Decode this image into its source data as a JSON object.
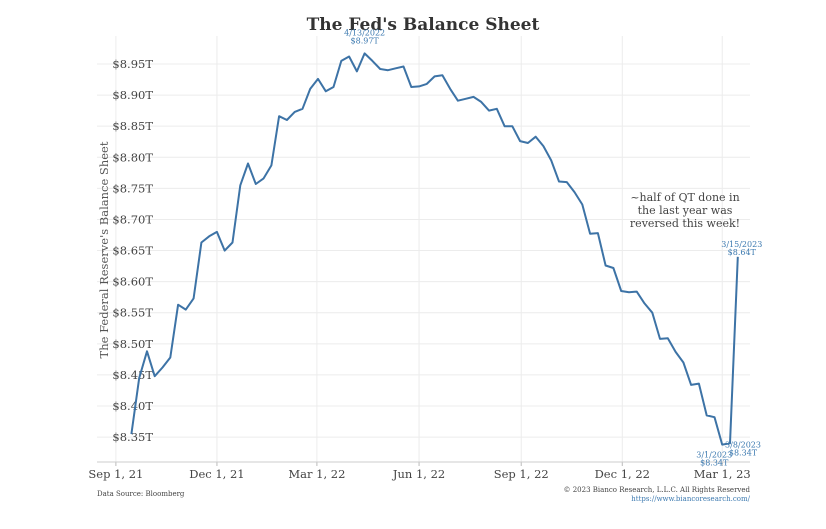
{
  "chart_data": {
    "type": "line",
    "title": "The Fed's Balance Sheet",
    "ylabel": "The Federal Reserve's Balance Sheet",
    "xlabel": "",
    "x_tick_labels": [
      "Sep 1, 21",
      "Dec 1, 21",
      "Mar 1, 22",
      "Jun 1, 22",
      "Sep 1, 22",
      "Dec 1, 22",
      "Mar 1, 23"
    ],
    "y_tick_labels": [
      "$8.35T",
      "$8.40T",
      "$8.45T",
      "$8.50T",
      "$8.55T",
      "$8.60T",
      "$8.65T",
      "$8.70T",
      "$8.75T",
      "$8.80T",
      "$8.85T",
      "$8.90T",
      "$8.95T"
    ],
    "ylim": [
      8.31,
      8.995
    ],
    "xlim": [
      "2021-08-15",
      "2023-03-26"
    ],
    "grid": true,
    "series": [
      {
        "color": "#3d73a6",
        "x": [
          "2021-09-15",
          "2021-09-22",
          "2021-09-29",
          "2021-10-06",
          "2021-10-13",
          "2021-10-20",
          "2021-10-27",
          "2021-11-03",
          "2021-11-10",
          "2021-11-17",
          "2021-11-24",
          "2021-12-01",
          "2021-12-08",
          "2021-12-15",
          "2021-12-22",
          "2021-12-29",
          "2022-01-05",
          "2022-01-12",
          "2022-01-19",
          "2022-01-26",
          "2022-02-02",
          "2022-02-09",
          "2022-02-16",
          "2022-02-23",
          "2022-03-02",
          "2022-03-09",
          "2022-03-16",
          "2022-03-23",
          "2022-03-30",
          "2022-04-06",
          "2022-04-13",
          "2022-04-20",
          "2022-04-27",
          "2022-05-04",
          "2022-05-11",
          "2022-05-18",
          "2022-05-25",
          "2022-06-01",
          "2022-06-08",
          "2022-06-15",
          "2022-06-22",
          "2022-06-29",
          "2022-07-06",
          "2022-07-13",
          "2022-07-20",
          "2022-07-27",
          "2022-08-03",
          "2022-08-10",
          "2022-08-17",
          "2022-08-24",
          "2022-08-31",
          "2022-09-07",
          "2022-09-14",
          "2022-09-21",
          "2022-09-28",
          "2022-10-05",
          "2022-10-12",
          "2022-10-19",
          "2022-10-26",
          "2022-11-02",
          "2022-11-09",
          "2022-11-16",
          "2022-11-23",
          "2022-11-30",
          "2022-12-07",
          "2022-12-14",
          "2022-12-21",
          "2022-12-28",
          "2023-01-04",
          "2023-01-11",
          "2023-01-18",
          "2023-01-25",
          "2023-02-01",
          "2023-02-08",
          "2023-02-15",
          "2023-02-22",
          "2023-03-01",
          "2023-03-08",
          "2023-03-15"
        ],
        "values": [
          8.355,
          8.445,
          8.488,
          8.448,
          8.462,
          8.478,
          8.563,
          8.555,
          8.573,
          8.663,
          8.673,
          8.68,
          8.65,
          8.663,
          8.755,
          8.79,
          8.757,
          8.766,
          8.787,
          8.866,
          8.86,
          8.873,
          8.878,
          8.91,
          8.926,
          8.906,
          8.913,
          8.955,
          8.962,
          8.938,
          8.967,
          8.955,
          8.942,
          8.94,
          8.943,
          8.946,
          8.913,
          8.914,
          8.918,
          8.93,
          8.932,
          8.91,
          8.891,
          8.894,
          8.897,
          8.889,
          8.875,
          8.878,
          8.85,
          8.85,
          8.826,
          8.823,
          8.833,
          8.818,
          8.795,
          8.761,
          8.76,
          8.744,
          8.724,
          8.677,
          8.678,
          8.626,
          8.622,
          8.585,
          8.583,
          8.584,
          8.565,
          8.55,
          8.508,
          8.509,
          8.487,
          8.47,
          8.434,
          8.436,
          8.385,
          8.382,
          8.338,
          8.34,
          8.64
        ]
      }
    ],
    "annotations": [
      {
        "date": "2022-04-13",
        "value": 8.967,
        "line1": "4/13/2022",
        "line2": "$8.97T"
      },
      {
        "date": "2023-03-01",
        "value": 8.338,
        "line1": "3/1/2023",
        "line2": "$8.34T"
      },
      {
        "date": "2023-03-08",
        "value": 8.34,
        "line1": "3/8/2023",
        "line2": "$8.34T"
      },
      {
        "date": "2023-03-15",
        "value": 8.64,
        "line1": "3/15/2023",
        "line2": "$8.64T"
      }
    ],
    "note": [
      "~half of QT done in",
      "the last year was",
      "reversed this week!"
    ]
  },
  "footer": {
    "source": "Data Source: Bloomberg",
    "copyright": "© 2023 Bianco Research, L.L.C. All Rights Reserved",
    "link": "https://www.biancoresearch.com/"
  }
}
